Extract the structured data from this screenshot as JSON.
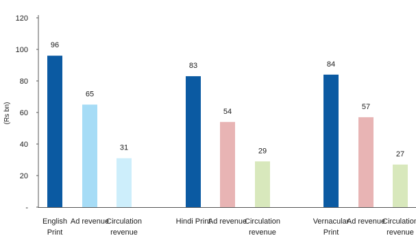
{
  "chart_data": {
    "type": "bar",
    "title": "",
    "xlabel": "",
    "ylabel": "(Rs bn)",
    "ylim": [
      0,
      120
    ],
    "yticks": [
      "-",
      "20",
      "40",
      "60",
      "80",
      "100",
      "120"
    ],
    "grid": false,
    "categories": [
      {
        "label": [
          "English",
          "Print"
        ],
        "value": 96,
        "color": "#0b5aa2"
      },
      {
        "label": [
          "Ad revenue"
        ],
        "value": 65,
        "color": "#a6dcf6"
      },
      {
        "label": [
          "Circulation",
          "revenue"
        ],
        "value": 31,
        "color": "#cdeefb"
      },
      {
        "label": [
          "Hindi Print"
        ],
        "value": 83,
        "color": "#0b5aa2"
      },
      {
        "label": [
          "Ad revenue"
        ],
        "value": 54,
        "color": "#e8b4b4"
      },
      {
        "label": [
          "Circulation",
          "revenue"
        ],
        "value": 29,
        "color": "#d8e8bc"
      },
      {
        "label": [
          "Vernacular",
          "Print"
        ],
        "value": 84,
        "color": "#0b5aa2"
      },
      {
        "label": [
          "Ad revenue"
        ],
        "value": 57,
        "color": "#e8b4b4"
      },
      {
        "label": [
          "Circulation",
          "revenue"
        ],
        "value": 27,
        "color": "#d8e8bc"
      }
    ]
  }
}
